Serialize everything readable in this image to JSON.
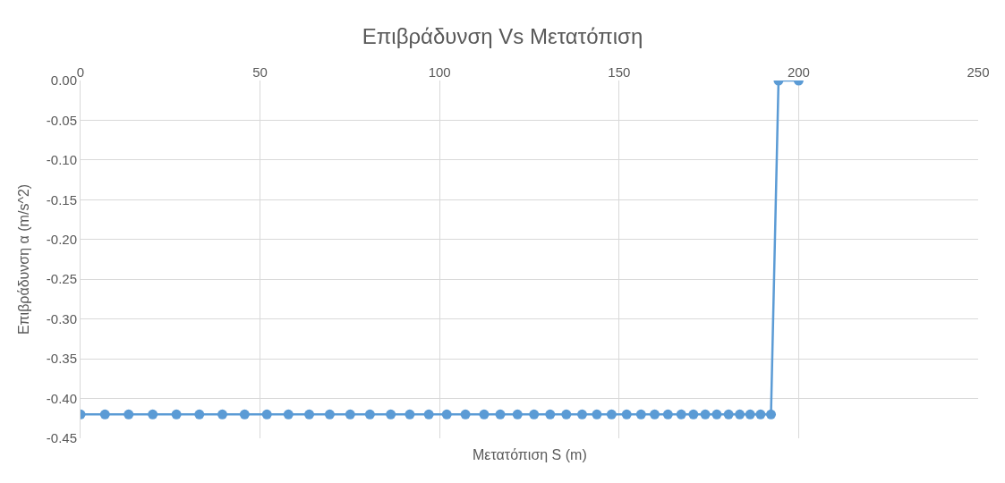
{
  "chart_data": {
    "type": "line",
    "title": "Επιβράδυνση Vs Μετατόπιση",
    "xlabel": "Μετατόπιση S (m)",
    "ylabel": "Επιβράδυνση α (m/s^2)",
    "x": [
      0,
      6.8,
      13.4,
      20.1,
      26.7,
      33.1,
      39.5,
      45.7,
      51.9,
      57.9,
      63.7,
      69.4,
      75.1,
      80.6,
      86.4,
      91.7,
      97.0,
      102.0,
      107.2,
      112.4,
      116.9,
      121.7,
      126.3,
      130.8,
      135.3,
      139.7,
      143.8,
      147.9,
      152.1,
      156.1,
      159.9,
      163.6,
      167.3,
      170.7,
      174.0,
      177.2,
      180.5,
      183.6,
      186.5,
      189.4,
      192.3,
      194.4,
      200
    ],
    "series": [
      {
        "color": "#5b9bd5",
        "values": [
          -0.42,
          -0.42,
          -0.42,
          -0.42,
          -0.42,
          -0.42,
          -0.42,
          -0.42,
          -0.42,
          -0.42,
          -0.42,
          -0.42,
          -0.42,
          -0.42,
          -0.42,
          -0.42,
          -0.42,
          -0.42,
          -0.42,
          -0.42,
          -0.42,
          -0.42,
          -0.42,
          -0.42,
          -0.42,
          -0.42,
          -0.42,
          -0.42,
          -0.42,
          -0.42,
          -0.42,
          -0.42,
          -0.42,
          -0.42,
          -0.42,
          -0.42,
          -0.42,
          -0.42,
          -0.42,
          -0.42,
          -0.42,
          0,
          0
        ]
      }
    ],
    "xlim": [
      0,
      250
    ],
    "xticks": [
      0,
      50,
      100,
      150,
      200,
      250
    ],
    "ylim": [
      -0.45,
      0
    ],
    "yticks": [
      {
        "value": 0,
        "label": "0.00"
      },
      {
        "value": -0.05,
        "label": "-0.05"
      },
      {
        "value": -0.1,
        "label": "-0.10"
      },
      {
        "value": -0.15,
        "label": "-0.15"
      },
      {
        "value": -0.2,
        "label": "-0.20"
      },
      {
        "value": -0.25,
        "label": "-0.25"
      },
      {
        "value": -0.3,
        "label": "-0.30"
      },
      {
        "value": -0.35,
        "label": "-0.35"
      },
      {
        "value": -0.4,
        "label": "-0.40"
      },
      {
        "value": -0.45,
        "label": "-0.45"
      }
    ],
    "grid": true,
    "marker": "circle",
    "line_style": "solid",
    "legend": false
  }
}
